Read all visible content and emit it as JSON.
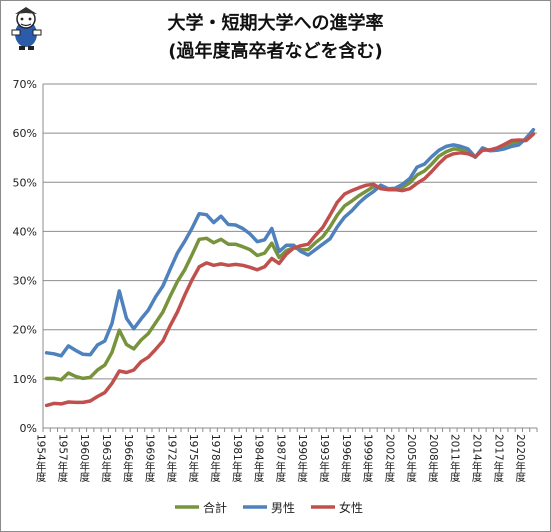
{
  "chart_data": {
    "type": "line",
    "title": "大学・短期大学への進学率",
    "subtitle": "(過年度高卒者などを含む)",
    "xlabel": "",
    "ylabel": "",
    "ylim": [
      0,
      70
    ],
    "y_ticks": [
      "0%",
      "10%",
      "20%",
      "30%",
      "40%",
      "50%",
      "60%",
      "70%"
    ],
    "grid": true,
    "legend_position": "bottom",
    "x": [
      "1954年度",
      "1955年度",
      "1956年度",
      "1957年度",
      "1958年度",
      "1959年度",
      "1960年度",
      "1961年度",
      "1962年度",
      "1963年度",
      "1964年度",
      "1965年度",
      "1966年度",
      "1967年度",
      "1968年度",
      "1969年度",
      "1970年度",
      "1971年度",
      "1972年度",
      "1973年度",
      "1974年度",
      "1975年度",
      "1976年度",
      "1977年度",
      "1978年度",
      "1979年度",
      "1980年度",
      "1981年度",
      "1982年度",
      "1983年度",
      "1984年度",
      "1985年度",
      "1986年度",
      "1987年度",
      "1988年度",
      "1989年度",
      "1990年度",
      "1991年度",
      "1992年度",
      "1993年度",
      "1994年度",
      "1995年度",
      "1996年度",
      "1997年度",
      "1998年度",
      "1999年度",
      "2000年度",
      "2001年度",
      "2002年度",
      "2003年度",
      "2004年度",
      "2005年度",
      "2006年度",
      "2007年度",
      "2008年度",
      "2009年度",
      "2010年度",
      "2011年度",
      "2012年度",
      "2013年度",
      "2014年度",
      "2015年度",
      "2016年度",
      "2017年度",
      "2018年度",
      "2019年度",
      "2020年度",
      "2021年度"
    ],
    "x_tick_labels": [
      "1954年度",
      "1957年度",
      "1960年度",
      "1963年度",
      "1966年度",
      "1969年度",
      "1972年度",
      "1975年度",
      "1978年度",
      "1981年度",
      "1984年度",
      "1987年度",
      "1990年度",
      "1993年度",
      "1996年度",
      "1999年度",
      "2002年度",
      "2005年度",
      "2008年度",
      "2011年度",
      "2014年度",
      "2017年度",
      "2020年度"
    ],
    "series": [
      {
        "name": "合計",
        "color": "#77933c",
        "values": [
          10.1,
          10.1,
          9.8,
          11.2,
          10.5,
          10.1,
          10.3,
          11.8,
          12.8,
          15.4,
          19.9,
          17.0,
          16.1,
          17.9,
          19.2,
          21.4,
          23.6,
          26.8,
          29.8,
          32.2,
          35.2,
          38.4,
          38.6,
          37.7,
          38.4,
          37.4,
          37.4,
          36.9,
          36.3,
          35.1,
          35.6,
          37.6,
          34.7,
          36.1,
          36.7,
          36.3,
          36.3,
          37.7,
          38.9,
          40.9,
          43.3,
          45.2,
          46.2,
          47.3,
          48.2,
          49.1,
          49.1,
          48.6,
          48.6,
          49.0,
          49.9,
          51.5,
          52.3,
          53.7,
          55.3,
          56.2,
          56.8,
          56.7,
          56.2,
          55.1,
          56.7,
          56.5,
          56.8,
          57.3,
          57.9,
          58.1,
          58.6,
          59.9
        ]
      },
      {
        "name": "男性",
        "color": "#4f81bd",
        "values": [
          15.3,
          15.1,
          14.7,
          16.7,
          15.8,
          15.0,
          14.9,
          16.9,
          17.7,
          21.3,
          27.9,
          22.3,
          20.2,
          22.2,
          24.0,
          26.7,
          28.9,
          32.3,
          35.6,
          38.0,
          40.6,
          43.6,
          43.4,
          41.8,
          43.1,
          41.4,
          41.3,
          40.6,
          39.5,
          37.9,
          38.3,
          40.6,
          35.9,
          37.2,
          37.2,
          35.9,
          35.2,
          36.3,
          37.4,
          38.5,
          40.9,
          42.9,
          44.2,
          45.8,
          47.1,
          48.1,
          49.4,
          48.7,
          48.8,
          49.6,
          50.8,
          53.1,
          53.7,
          55.2,
          56.5,
          57.3,
          57.6,
          57.3,
          56.8,
          55.1,
          57.0,
          56.4,
          56.5,
          56.8,
          57.3,
          57.6,
          59.0,
          60.7
        ]
      },
      {
        "name": "女性",
        "color": "#c0504d",
        "values": [
          4.6,
          5.0,
          4.9,
          5.3,
          5.2,
          5.2,
          5.5,
          6.4,
          7.2,
          9.1,
          11.6,
          11.3,
          11.8,
          13.5,
          14.4,
          16.0,
          17.7,
          20.8,
          23.6,
          27.0,
          30.1,
          32.8,
          33.6,
          33.1,
          33.4,
          33.1,
          33.3,
          33.1,
          32.7,
          32.2,
          32.8,
          34.5,
          33.5,
          35.4,
          36.6,
          37.1,
          37.4,
          39.2,
          40.8,
          43.3,
          45.9,
          47.6,
          48.3,
          48.9,
          49.4,
          49.6,
          48.7,
          48.5,
          48.5,
          48.3,
          48.7,
          49.8,
          50.7,
          52.2,
          53.8,
          55.2,
          55.8,
          56.0,
          55.8,
          55.2,
          56.5,
          56.6,
          57.0,
          57.7,
          58.5,
          58.6,
          58.5,
          59.8
        ]
      }
    ]
  }
}
